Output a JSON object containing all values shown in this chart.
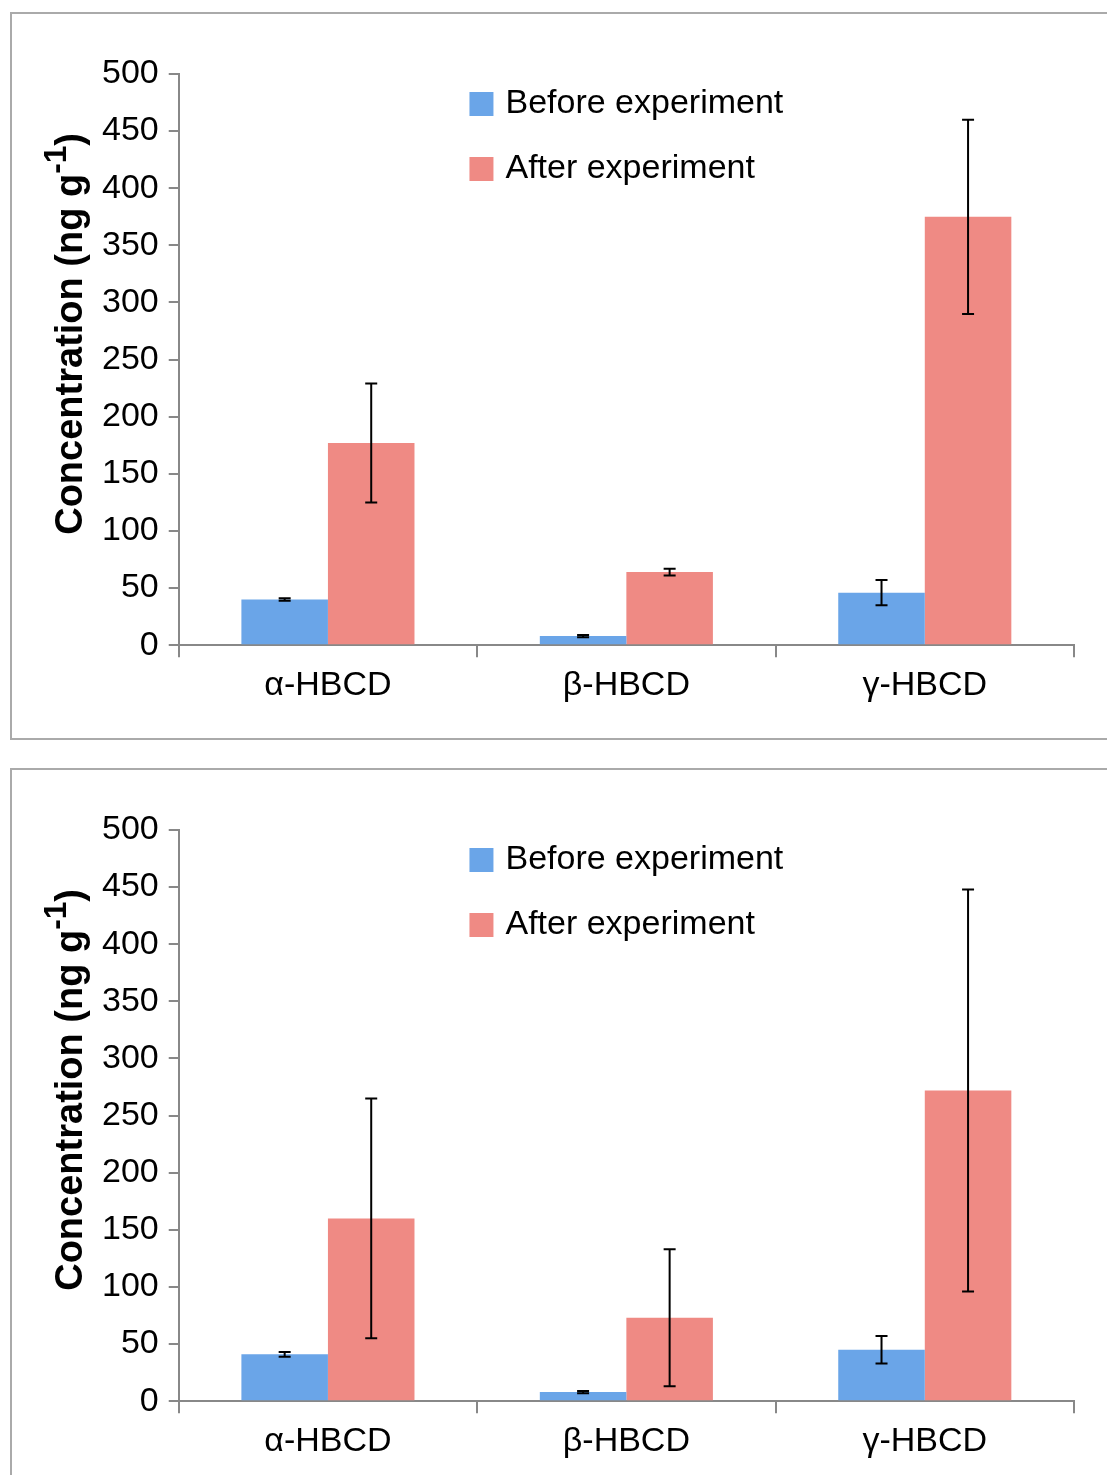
{
  "chart_data": [
    {
      "type": "bar",
      "ylabel": "Concentration (ng g$^{-1}$)",
      "categories": [
        "α-HBCD",
        "β-HBCD",
        "γ-HBCD"
      ],
      "series": [
        {
          "name": "Before experiment",
          "color": "#6aa5e8",
          "values": [
            40,
            8,
            46
          ],
          "errors": [
            1,
            1,
            11
          ]
        },
        {
          "name": "After experiment",
          "color": "#ef8a84",
          "values": [
            177,
            64,
            375
          ],
          "errors": [
            52,
            3,
            85
          ]
        }
      ],
      "ylim": [
        0,
        500
      ],
      "yticks": [
        0,
        50,
        100,
        150,
        200,
        250,
        300,
        350,
        400,
        450,
        500
      ],
      "grid": false,
      "legend": "top"
    },
    {
      "type": "bar",
      "ylabel": "Concentration (ng g$^{-1}$)",
      "categories": [
        "α-HBCD",
        "β-HBCD",
        "γ-HBCD"
      ],
      "series": [
        {
          "name": "Before experiment",
          "color": "#6aa5e8",
          "values": [
            41,
            8,
            45
          ],
          "errors": [
            2,
            1,
            12
          ]
        },
        {
          "name": "After experiment",
          "color": "#ef8a84",
          "values": [
            160,
            73,
            272
          ],
          "errors": [
            105,
            60,
            176
          ]
        }
      ],
      "ylim": [
        0,
        500
      ],
      "yticks": [
        0,
        50,
        100,
        150,
        200,
        250,
        300,
        350,
        400,
        450,
        500
      ],
      "grid": false,
      "legend": "top"
    }
  ]
}
